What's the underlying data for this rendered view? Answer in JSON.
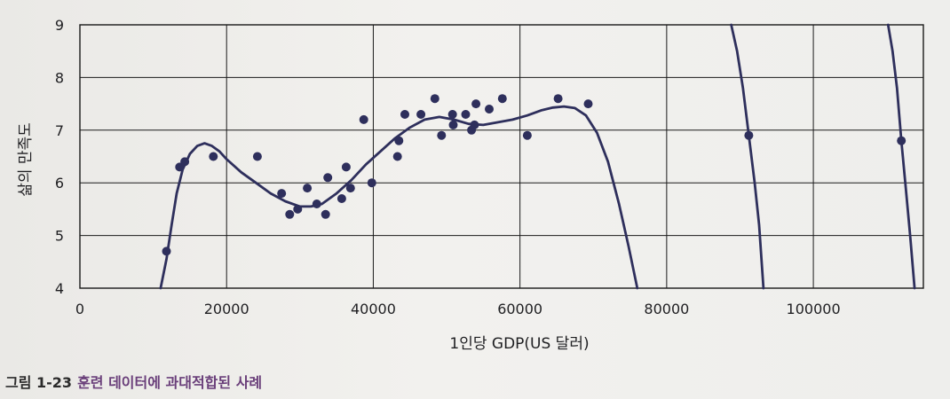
{
  "caption": {
    "figure_number": "그림 1-23",
    "title": "훈련 데이터에 과대적합된 사례"
  },
  "chart_data": {
    "type": "scatter",
    "title": "",
    "xlabel": "1인당 GDP(US 달러)",
    "ylabel": "삶의 만족도",
    "xlim": [
      0,
      115000
    ],
    "ylim": [
      4,
      9
    ],
    "xticks": [
      0,
      20000,
      40000,
      60000,
      80000,
      100000
    ],
    "yticks": [
      4,
      5,
      6,
      7,
      8,
      9
    ],
    "grid": true,
    "colors": {
      "points": "#2e2f5c",
      "curve": "#2e2f5c",
      "grid": "#1a1a1a"
    },
    "series": [
      {
        "kind": "points",
        "x": [
          11800,
          13600,
          14300,
          18200,
          24200,
          27500,
          28600,
          29700,
          31000,
          32300,
          33500,
          33800,
          35700,
          36300,
          36900,
          38700,
          39800,
          43300,
          43500,
          44300,
          46500,
          48400,
          49300,
          50800,
          50900,
          52600,
          53400,
          53800,
          54000,
          55800,
          57600,
          61000,
          65200,
          69300,
          91200,
          112000
        ],
        "y": [
          4.7,
          6.3,
          6.4,
          6.5,
          6.5,
          5.8,
          5.4,
          5.5,
          5.9,
          5.6,
          5.4,
          6.1,
          5.7,
          6.3,
          5.9,
          7.2,
          6.0,
          6.5,
          6.8,
          7.3,
          7.3,
          7.6,
          6.9,
          7.3,
          7.1,
          7.3,
          7.0,
          7.1,
          7.5,
          7.4,
          7.6,
          6.9,
          7.6,
          7.5,
          6.9,
          6.8
        ]
      },
      {
        "kind": "curve",
        "x": [
          11000,
          11800,
          12500,
          13200,
          14000,
          15000,
          16000,
          17000,
          18000,
          19000,
          20000,
          22000,
          24000,
          26000,
          28000,
          30000,
          31500,
          33000,
          35000,
          37000,
          39000,
          41000,
          43000,
          45000,
          47000,
          49000,
          51000,
          53000,
          55000,
          57000,
          59000,
          61000,
          63000,
          64500,
          66000,
          67500,
          69000,
          70500,
          72000,
          73500,
          74800,
          76000,
          88800,
          89600,
          90400,
          91200,
          92000,
          92600,
          93200,
          110200,
          110800,
          111400,
          112000,
          112600,
          113200,
          113800
        ],
        "y": [
          4.0,
          4.55,
          5.2,
          5.8,
          6.25,
          6.55,
          6.7,
          6.75,
          6.7,
          6.6,
          6.45,
          6.2,
          6.0,
          5.8,
          5.65,
          5.55,
          5.55,
          5.6,
          5.8,
          6.05,
          6.35,
          6.6,
          6.85,
          7.05,
          7.2,
          7.25,
          7.2,
          7.12,
          7.1,
          7.15,
          7.2,
          7.28,
          7.38,
          7.43,
          7.45,
          7.42,
          7.28,
          6.95,
          6.4,
          5.6,
          4.8,
          4.0,
          9.0,
          8.5,
          7.8,
          6.9,
          6.0,
          5.2,
          4.0,
          9.0,
          8.5,
          7.8,
          6.8,
          5.9,
          5.0,
          4.0
        ]
      }
    ]
  }
}
